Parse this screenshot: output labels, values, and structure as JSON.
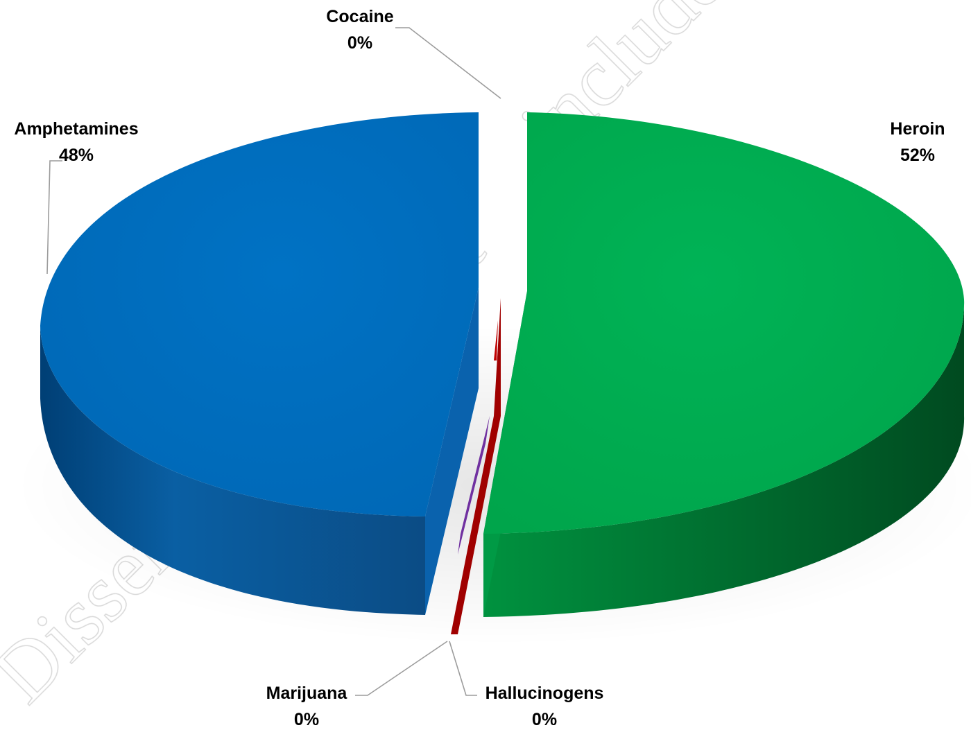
{
  "chart_data": {
    "type": "pie",
    "style": "3d-exploded",
    "legend": "none",
    "title": "",
    "slices": [
      {
        "label": "Heroin",
        "value": 52,
        "pct_label": "52%",
        "color": "#00b050"
      },
      {
        "label": "Amphetamines",
        "value": 48,
        "pct_label": "48%",
        "color": "#0070c0"
      },
      {
        "label": "Cocaine",
        "value": 0,
        "pct_label": "0%",
        "color": "#c00000"
      },
      {
        "label": "Marijuana",
        "value": 0,
        "pct_label": "0%",
        "color": "#7030a0"
      },
      {
        "label": "Hallucinogens",
        "value": 0,
        "pct_label": "0%",
        "color": "#c00000"
      }
    ]
  },
  "watermark": {
    "text_left": "Dissem",
    "text_mid": "uct",
    "text_right": "includes"
  }
}
